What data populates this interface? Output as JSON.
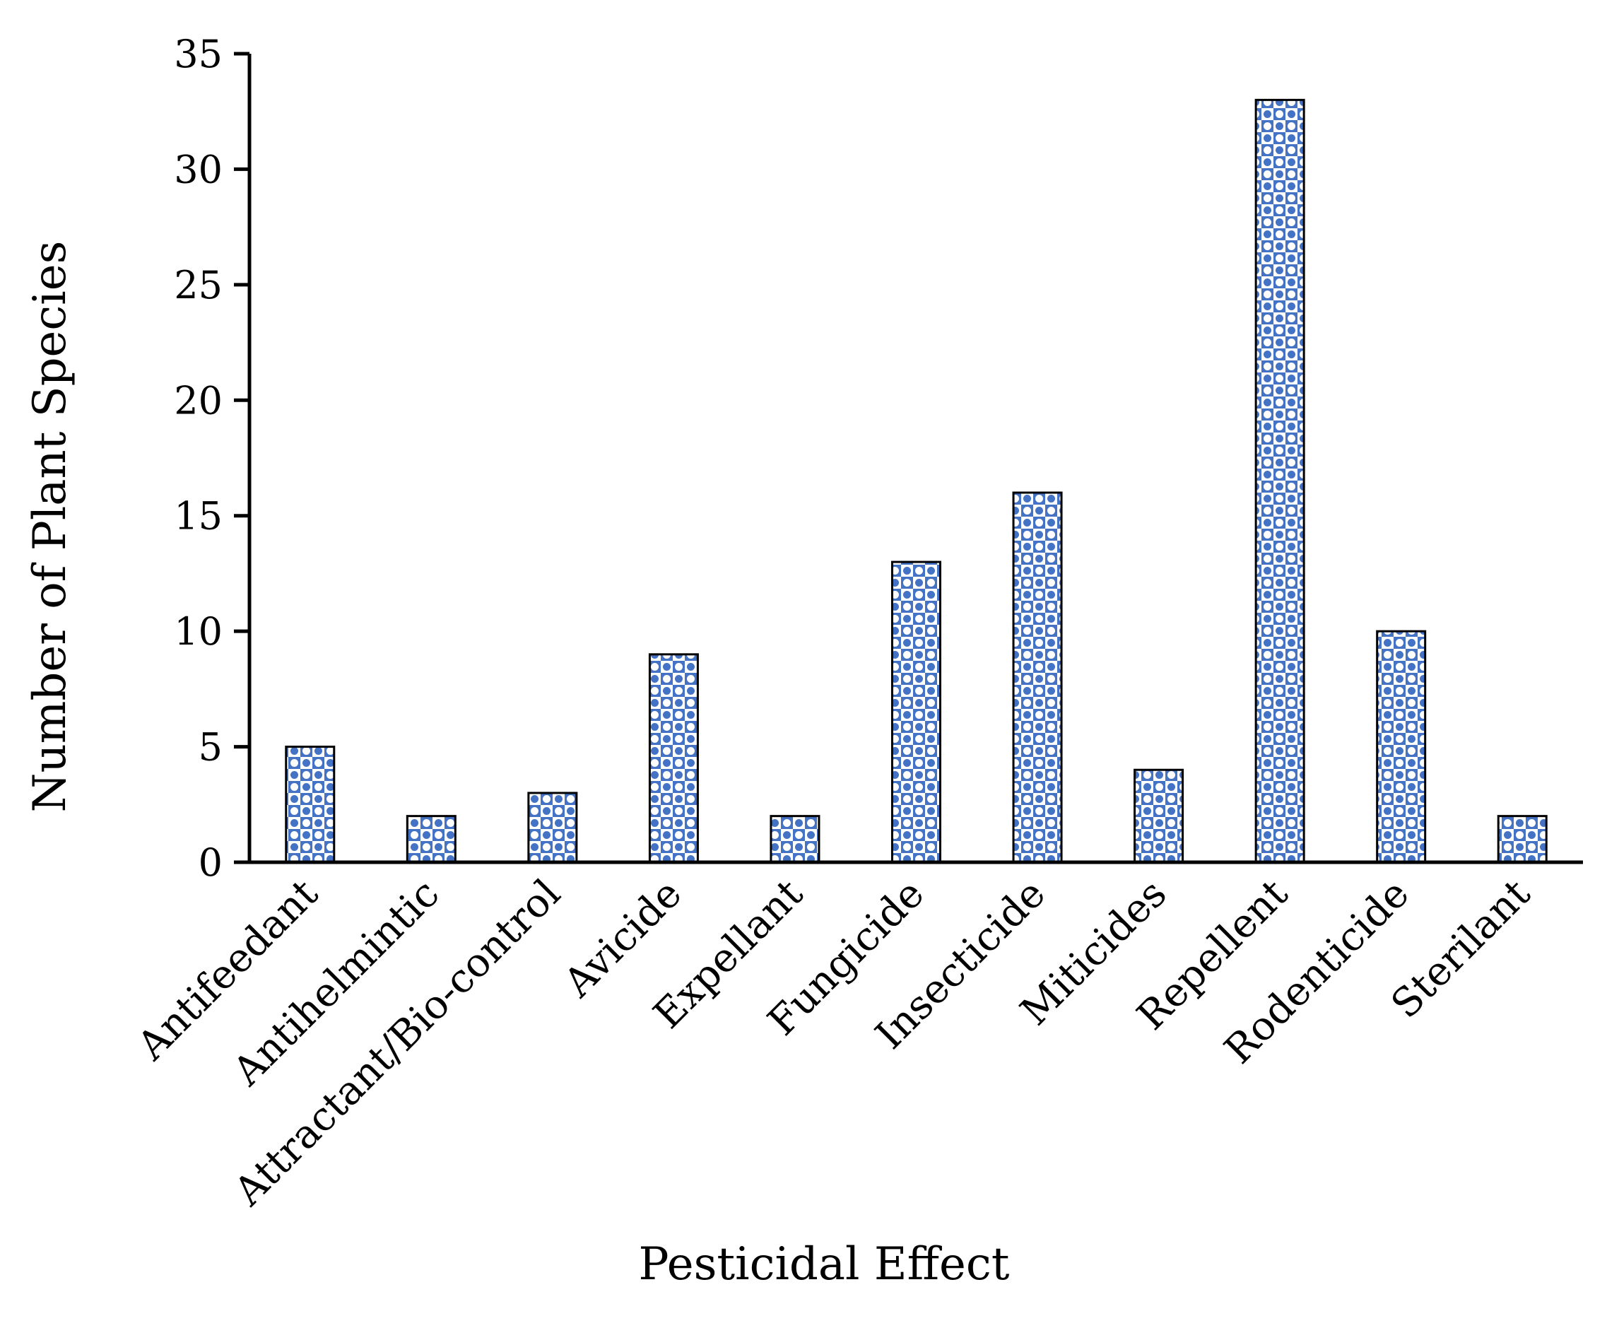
{
  "chart_data": {
    "type": "bar",
    "title": "",
    "xlabel": "Pesticidal Effect",
    "ylabel": "Number of Plant Species",
    "categories": [
      "Antifeedant",
      "Antihelmintic",
      "Attractant/Bio-control",
      "Avicide",
      "Expellant",
      "Fungicide",
      "Insecticide",
      "Miticides",
      "Repellent",
      "Rodenticide",
      "Sterilant"
    ],
    "values": [
      5,
      2,
      3,
      9,
      2,
      13,
      16,
      4,
      33,
      10,
      2
    ],
    "ylim": [
      0,
      35
    ],
    "yticks": [
      0,
      5,
      10,
      15,
      20,
      25,
      30,
      35
    ],
    "grid": false,
    "legend": "none",
    "bar_color": "#4472C4",
    "bar_pattern_background": "#ffffff",
    "bar_pattern": "checker-dots"
  }
}
